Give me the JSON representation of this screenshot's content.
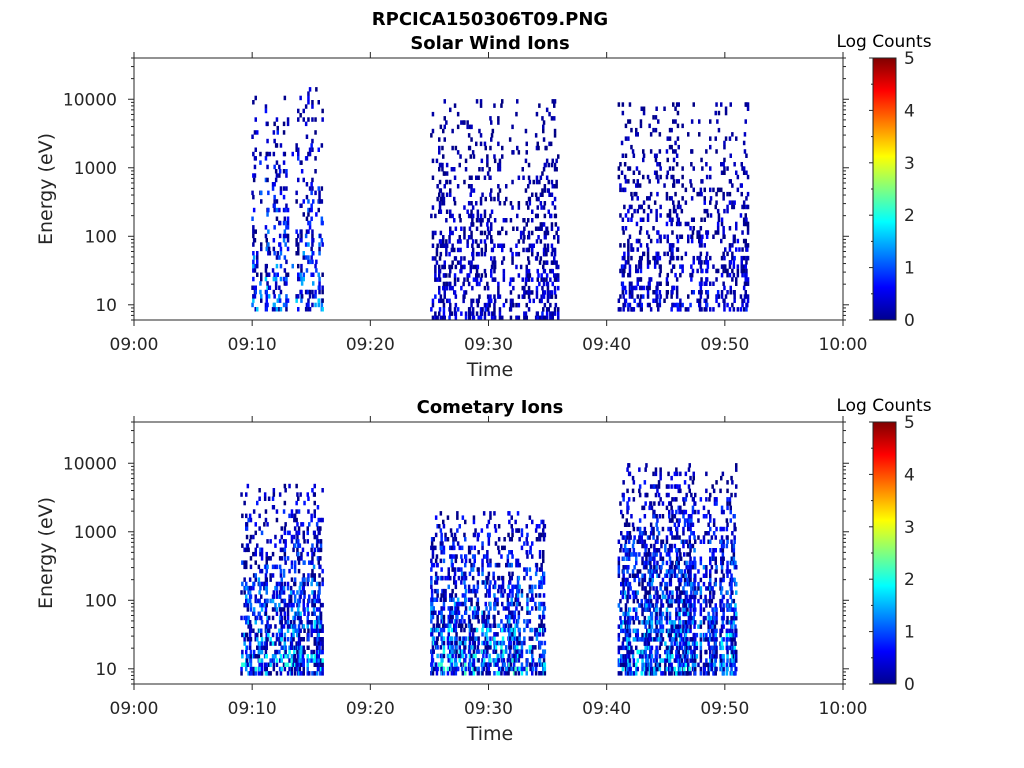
{
  "figure": {
    "title": "RPCICA150306T09.PNG"
  },
  "colorbar": {
    "title": "Log Counts",
    "min": 0,
    "max": 5,
    "ticks": [
      "0",
      "1",
      "2",
      "3",
      "4",
      "5"
    ],
    "colormap": "jet"
  },
  "chart_data": [
    {
      "type": "heatmap",
      "title": "Solar Wind Ions",
      "xlabel": "Time",
      "ylabel": "Energy (eV)",
      "x_ticks": [
        "09:00",
        "09:10",
        "09:20",
        "09:30",
        "09:40",
        "09:50",
        "10:00"
      ],
      "xlim": [
        "09:00",
        "10:00"
      ],
      "y_scale": "log",
      "y_ticks": [
        "10",
        "100",
        "1000",
        "10000"
      ],
      "ylim": [
        6,
        40000
      ],
      "colorbar_label": "Log Counts",
      "clim": [
        0,
        5
      ],
      "bursts": [
        {
          "t_start": "09:10",
          "t_end": "09:16",
          "e_min": 8,
          "e_max": 15000,
          "log_counts_max": 1.8,
          "density": 0.45
        },
        {
          "t_start": "09:25",
          "t_end": "09:36",
          "e_min": 6,
          "e_max": 10000,
          "log_counts_max": 0.8,
          "density": 0.4
        },
        {
          "t_start": "09:41",
          "t_end": "09:52",
          "e_min": 8,
          "e_max": 9000,
          "log_counts_max": 0.9,
          "density": 0.42
        }
      ]
    },
    {
      "type": "heatmap",
      "title": "Cometary Ions",
      "xlabel": "Time",
      "ylabel": "Energy (eV)",
      "x_ticks": [
        "09:00",
        "09:10",
        "09:20",
        "09:30",
        "09:40",
        "09:50",
        "10:00"
      ],
      "xlim": [
        "09:00",
        "10:00"
      ],
      "y_scale": "log",
      "y_ticks": [
        "10",
        "100",
        "1000",
        "10000"
      ],
      "ylim": [
        6,
        40000
      ],
      "colorbar_label": "Log Counts",
      "clim": [
        0,
        5
      ],
      "bursts": [
        {
          "t_start": "09:09",
          "t_end": "09:16",
          "e_min": 8,
          "e_max": 5000,
          "log_counts_max": 2.2,
          "density": 0.75
        },
        {
          "t_start": "09:25",
          "t_end": "09:35",
          "e_min": 8,
          "e_max": 2000,
          "log_counts_max": 2.3,
          "density": 0.75
        },
        {
          "t_start": "09:41",
          "t_end": "09:51",
          "e_min": 8,
          "e_max": 10000,
          "log_counts_max": 2.1,
          "density": 0.75
        }
      ]
    }
  ]
}
